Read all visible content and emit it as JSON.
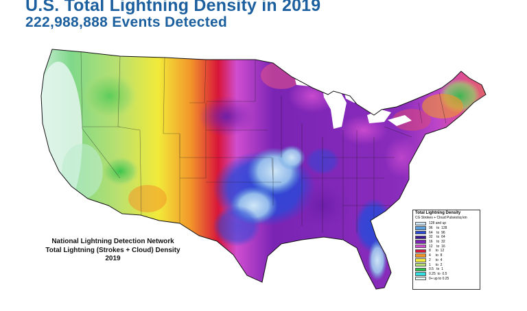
{
  "header": {
    "title": "U.S. Total Lightning Density in 2019",
    "subtitle": "222,988,888 Events Detected"
  },
  "map": {
    "caption_lines": [
      "National Lightning Detection Network",
      "Total Lightning (Strokes + Cloud) Density",
      "2019"
    ],
    "legend": {
      "title": "Total Lightning Density",
      "subtitle": "CG Strokes + Cloud Pulses/sq km",
      "items": [
        {
          "label": "128 and up",
          "color": "#cfe6f6"
        },
        {
          "label": "96    to  128",
          "color": "#5aa0dc"
        },
        {
          "label": "64    to  96",
          "color": "#2a49d8"
        },
        {
          "label": "32    to  64",
          "color": "#3c1896"
        },
        {
          "label": "16    to  32",
          "color": "#7a24b4"
        },
        {
          "label": "12    to  16",
          "color": "#d04ed0"
        },
        {
          "label": "8     to  12",
          "color": "#d8153a"
        },
        {
          "label": "4     to  8",
          "color": "#f2962a"
        },
        {
          "label": "2     to  4",
          "color": "#f2ea3a"
        },
        {
          "label": "1     to  2",
          "color": "#b8e070"
        },
        {
          "label": "0.5   to  1",
          "color": "#2cc24a"
        },
        {
          "label": "0.25  to  0.5",
          "color": "#30e0e0"
        },
        {
          "label": "0+ up to 0.25",
          "color": "#e8f8f8"
        }
      ]
    }
  }
}
